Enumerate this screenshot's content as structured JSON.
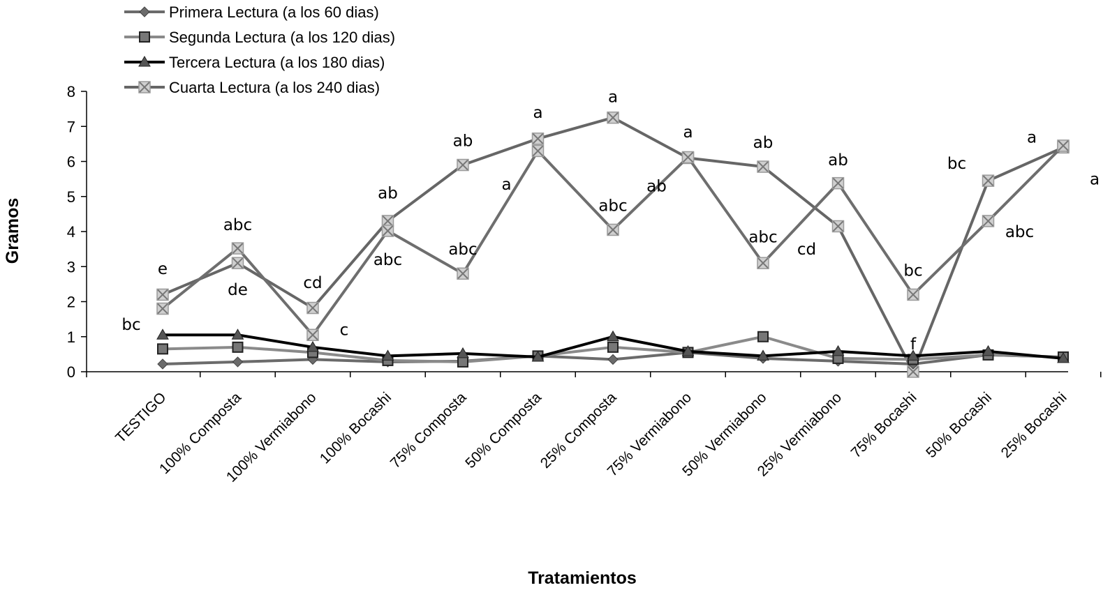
{
  "chart_data": {
    "type": "line",
    "title": "",
    "xlabel": "Tratamientos",
    "ylabel": "Gramos",
    "ylim": [
      0,
      8
    ],
    "yticks": [
      "0",
      "1",
      "2",
      "3",
      "4",
      "5",
      "6",
      "7",
      "8"
    ],
    "categories": [
      "TESTIGO",
      "100%  Composta",
      "100%  Vermiabono",
      "100%  Bocashi",
      "75% Composta",
      "50% Composta",
      "25% Composta",
      "75% Vermiabono",
      "50% Vermiabono",
      "25% Vermiabono",
      "75% Bocashi",
      "50% Bocashi",
      "25% Bocashi"
    ],
    "legend_position": "top-left",
    "series": [
      {
        "name": "Primera Lectura (a los 60 dias)",
        "marker": "diamond",
        "color": "#6b6b6b",
        "values": [
          0.22,
          0.28,
          0.35,
          0.28,
          0.3,
          0.45,
          0.35,
          0.55,
          0.38,
          0.3,
          0.22,
          0.48,
          0.42
        ]
      },
      {
        "name": "Segunda Lectura (a los 120 dias)",
        "marker": "square",
        "color": "#8a8a8a",
        "values": [
          0.65,
          0.7,
          0.55,
          0.32,
          0.28,
          0.45,
          0.7,
          0.55,
          1.0,
          0.38,
          0.35,
          0.48,
          0.42
        ]
      },
      {
        "name": "Tercera Lectura (a los 180 dias)",
        "marker": "triangle",
        "color": "#000000",
        "values": [
          1.05,
          1.05,
          0.7,
          0.45,
          0.52,
          0.42,
          1.0,
          0.58,
          0.45,
          0.58,
          0.45,
          0.58,
          0.38
        ]
      },
      {
        "name": "Cuarta Lectura (a los 240 dias)",
        "marker": "xsquare",
        "color": "#666666",
        "values": [
          2.2,
          3.1,
          1.82,
          4.3,
          5.9,
          6.65,
          7.25,
          6.1,
          5.85,
          4.15,
          0.0,
          5.45,
          6.4
        ]
      },
      {
        "name": "",
        "marker": "xsquare",
        "color": "#6e6e6e",
        "values": [
          1.8,
          3.52,
          1.05,
          4.02,
          2.8,
          6.3,
          4.05,
          6.12,
          3.1,
          5.38,
          2.2,
          4.3,
          6.45
        ]
      }
    ],
    "annotations": [
      {
        "text": "e",
        "category": "TESTIGO",
        "y": 2.95
      },
      {
        "text": "bc",
        "category": "TESTIGO",
        "y": 1.35,
        "offset": "left"
      },
      {
        "text": "abc",
        "category": "100%  Composta",
        "y": 4.2
      },
      {
        "text": "de",
        "category": "100%  Composta",
        "y": 2.35
      },
      {
        "text": "cd",
        "category": "100%  Vermiabono",
        "y": 2.55
      },
      {
        "text": "c",
        "category": "100%  Vermiabono",
        "y": 1.2,
        "offset": "right"
      },
      {
        "text": "ab",
        "category": "100%  Bocashi",
        "y": 5.1
      },
      {
        "text": "abc",
        "category": "100%  Bocashi",
        "y": 3.2
      },
      {
        "text": "ab",
        "category": "75% Composta",
        "y": 6.6
      },
      {
        "text": "abc",
        "category": "75% Composta",
        "y": 3.5
      },
      {
        "text": "a",
        "category": "50% Composta",
        "y": 7.4
      },
      {
        "text": "a",
        "category": "50% Composta",
        "y": 5.35,
        "offset": "left"
      },
      {
        "text": "a",
        "category": "25% Composta",
        "y": 7.85
      },
      {
        "text": "abc",
        "category": "25% Composta",
        "y": 4.75
      },
      {
        "text": "a",
        "category": "75% Vermiabono",
        "y": 6.85
      },
      {
        "text": "ab",
        "category": "75% Vermiabono",
        "y": 5.3,
        "offset": "left"
      },
      {
        "text": "ab",
        "category": "50% Vermiabono",
        "y": 6.55
      },
      {
        "text": "abc",
        "category": "50% Vermiabono",
        "y": 3.85
      },
      {
        "text": "ab",
        "category": "25% Vermiabono",
        "y": 6.05
      },
      {
        "text": "cd",
        "category": "25% Vermiabono",
        "y": 3.5,
        "offset": "left"
      },
      {
        "text": "bc",
        "category": "75% Bocashi",
        "y": 2.9
      },
      {
        "text": "f",
        "category": "75% Bocashi",
        "y": 0.8
      },
      {
        "text": "bc",
        "category": "50% Bocashi",
        "y": 5.95,
        "offset": "left"
      },
      {
        "text": "abc",
        "category": "50% Bocashi",
        "y": 4.0,
        "offset": "right"
      },
      {
        "text": "a",
        "category": "25% Bocashi",
        "y": 6.7,
        "offset": "left"
      },
      {
        "text": "a",
        "category": "25% Bocashi",
        "y": 5.5,
        "offset": "right"
      }
    ]
  }
}
